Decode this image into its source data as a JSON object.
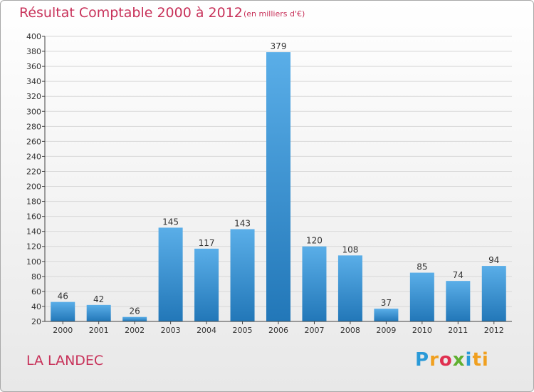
{
  "header": {
    "title": "Résultat Comptable 2000 à 2012",
    "unit": "(en milliers d'€)"
  },
  "footer": {
    "commune": "LA LANDEC",
    "logo": "Proxiti"
  },
  "colors": {
    "accent_text": "#c8325a",
    "bar_top": "#5aaee8",
    "bar_bottom": "#2277b8"
  },
  "chart_data": {
    "type": "bar",
    "title": "Résultat Comptable 2000 à 2012",
    "subtitle": "(en milliers d'€)",
    "categories": [
      "2000",
      "2001",
      "2002",
      "2003",
      "2004",
      "2005",
      "2006",
      "2007",
      "2008",
      "2009",
      "2010",
      "2011",
      "2012"
    ],
    "values": [
      46,
      42,
      26,
      145,
      117,
      143,
      379,
      120,
      108,
      37,
      85,
      74,
      94
    ],
    "ylim": [
      20,
      400
    ],
    "yticks": [
      20,
      40,
      60,
      80,
      100,
      120,
      140,
      160,
      180,
      200,
      220,
      240,
      260,
      280,
      300,
      320,
      340,
      360,
      380,
      400
    ],
    "grid": true,
    "legend": "none"
  }
}
